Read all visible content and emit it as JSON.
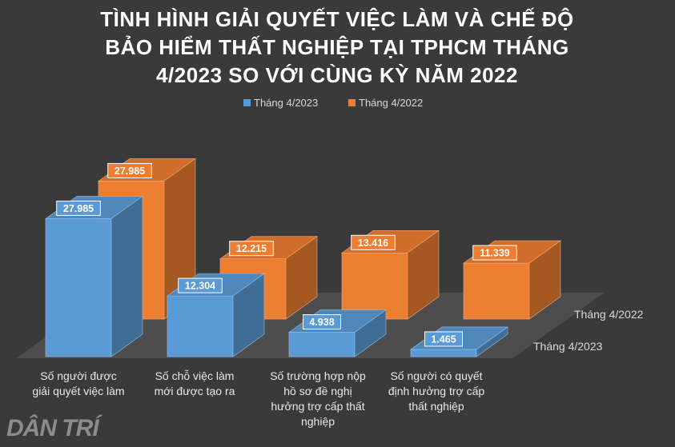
{
  "chart_data": {
    "type": "bar",
    "title_lines": [
      "TÌNH HÌNH GIẢI QUYẾT VIỆC LÀM VÀ CHẾ ĐỘ",
      "BẢO HIỂM THẤT NGHIỆP TẠI TPHCM THÁNG",
      "4/2023 SO VỚI CÙNG KỲ NĂM 2022"
    ],
    "categories": [
      [
        "Số người được",
        "giải quyết việc làm"
      ],
      [
        "Số chỗ việc làm",
        "mới được tạo ra"
      ],
      [
        "Số trường hợp nộp",
        "hồ sơ đề nghị",
        "hưởng trợ cấp thất",
        "nghiệp"
      ],
      [
        "Số người có quyết",
        "định hưởng trợ cấp",
        "thất nghiệp"
      ]
    ],
    "series": [
      {
        "name": "Tháng 4/2023",
        "color": "#5b9bd5",
        "values": [
          27985,
          12304,
          4938,
          1465
        ],
        "labels": [
          "27.985",
          "12.304",
          "4.938",
          "1.465"
        ]
      },
      {
        "name": "Tháng 4/2022",
        "color": "#ed7d31",
        "values": [
          27985,
          12215,
          13416,
          11339
        ],
        "labels": [
          "27.985",
          "12.215",
          "13.416",
          "11.339"
        ]
      }
    ],
    "legend_position": "top",
    "ylim": [
      0,
      30000
    ],
    "grid": false
  },
  "watermark": "DÂN TRÍ"
}
